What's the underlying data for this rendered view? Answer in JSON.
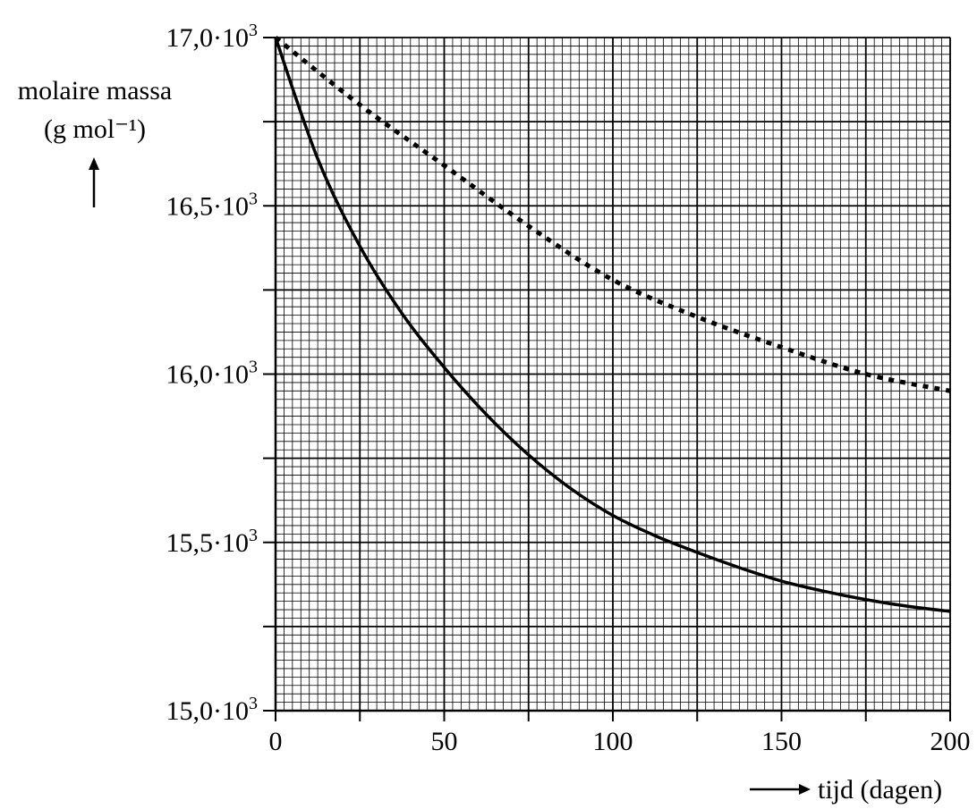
{
  "chart_data": {
    "type": "line",
    "title": "",
    "xlabel": "tijd (dagen)",
    "ylabel": "molaire massa",
    "ylabel_unit": "(g mol⁻¹)",
    "xlim": [
      0,
      200
    ],
    "ylim": [
      15000,
      17000
    ],
    "grid": true,
    "x_ticks": [
      0,
      50,
      100,
      150,
      200
    ],
    "x_tick_labels": [
      "0",
      "50",
      "100",
      "150",
      "200"
    ],
    "y_ticks": [
      15000,
      15500,
      16000,
      16500,
      17000
    ],
    "y_tick_labels": [
      "15,0·10³",
      "15,5·10³",
      "16,0·10³",
      "16,5·10³",
      "17,0·10³"
    ],
    "series": [
      {
        "name": "solid curve",
        "style": "solid",
        "x": [
          0,
          12.5,
          25,
          37.5,
          50,
          62.5,
          75,
          87.5,
          100,
          112.5,
          125,
          137.5,
          150,
          162.5,
          175,
          187.5,
          200
        ],
        "y": [
          17000,
          16640,
          16380,
          16180,
          16020,
          15880,
          15760,
          15660,
          15580,
          15520,
          15470,
          15425,
          15385,
          15355,
          15330,
          15310,
          15295
        ]
      },
      {
        "name": "dashed curve",
        "style": "dotted",
        "x": [
          0,
          25,
          50,
          75,
          100,
          125,
          150,
          175,
          200
        ],
        "y": [
          17000,
          16800,
          16620,
          16440,
          16280,
          16170,
          16080,
          16000,
          15950
        ]
      }
    ]
  }
}
